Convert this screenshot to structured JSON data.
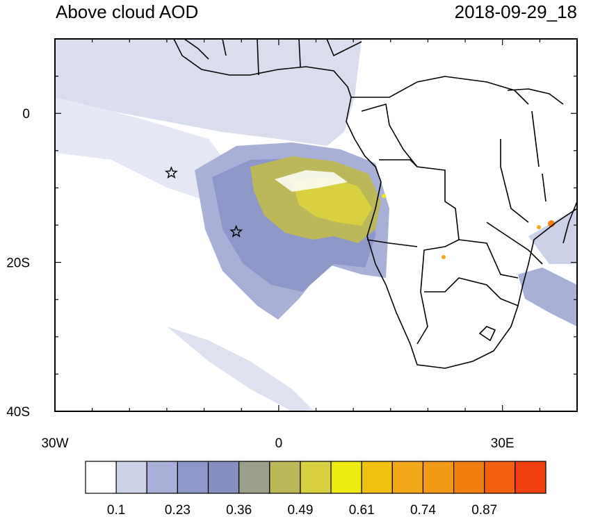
{
  "header": {
    "title_left": "Above cloud AOD",
    "title_right": "2018-09-29_18"
  },
  "map": {
    "lon_range": [
      -30,
      40
    ],
    "lat_range": [
      -40,
      10
    ],
    "x_ticks": [
      {
        "value": -30,
        "label": "30W"
      },
      {
        "value": 0,
        "label": "0"
      },
      {
        "value": 30,
        "label": "30E"
      }
    ],
    "y_ticks": [
      {
        "value": 0,
        "label": "0"
      },
      {
        "value": -20,
        "label": "20S"
      },
      {
        "value": -40,
        "label": "40S"
      }
    ],
    "markers": [
      {
        "name": "star-marker-1",
        "lon": -14.4,
        "lat": -8.0
      },
      {
        "name": "star-marker-2",
        "lon": -5.7,
        "lat": -15.9
      }
    ]
  },
  "colorbar": {
    "colors": [
      "#ffffff",
      "#ccd1e8",
      "#a8b0d8",
      "#8e98c8",
      "#8690c0",
      "#9aa08a",
      "#bcb85a",
      "#d8d040",
      "#eeea10",
      "#f2c010",
      "#f2a818",
      "#f29a18",
      "#f28010",
      "#f26010",
      "#f24010"
    ],
    "labels": [
      "0.1",
      "0.23",
      "0.36",
      "0.49",
      "0.61",
      "0.74",
      "0.87"
    ]
  }
}
